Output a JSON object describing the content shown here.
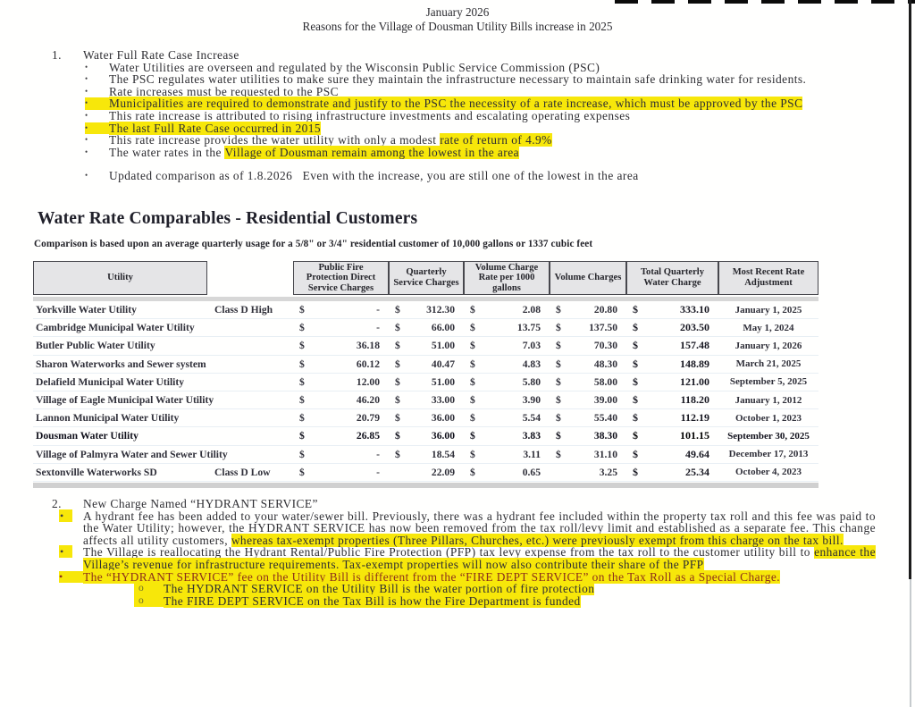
{
  "header": {
    "line1": "January 2026",
    "line2": "Reasons for the Village of Dousman Utility Bills increase in 2025"
  },
  "section1": {
    "number": "1.",
    "heading": "Water Full Rate Case Increase",
    "bullets": [
      {
        "marker": "dot",
        "marker_hl": "none",
        "segments": [
          {
            "t": "Water Utilities are overseen and regulated by the Wisconsin Public Service Commission (PSC)",
            "hl": false
          }
        ]
      },
      {
        "marker": "dot",
        "marker_hl": "none",
        "segments": [
          {
            "t": "The PSC regulates water utilities to make sure they maintain the infrastructure necessary to maintain safe drinking water for residents.",
            "hl": false
          }
        ]
      },
      {
        "marker": "dot",
        "marker_hl": "none",
        "segments": [
          {
            "t": "Rate increases must be requested to the PSC",
            "hl": false
          }
        ]
      },
      {
        "marker": "dot",
        "marker_hl": "full",
        "segments": [
          {
            "t": "Municipalities are required to demonstrate and justify to the PSC the necessity of a rate increase, which must be approved by the PSC",
            "hl": true
          }
        ]
      },
      {
        "marker": "dot",
        "marker_hl": "none",
        "segments": [
          {
            "t": "This rate increase is attributed to rising infrastructure investments and escalating operating expenses",
            "hl": false
          }
        ]
      },
      {
        "marker": "dot",
        "marker_hl": "full",
        "segments": [
          {
            "t": "The last Full Rate Case occurred in 2015",
            "hl": true
          }
        ]
      },
      {
        "marker": "dot",
        "marker_hl": "none",
        "segments": [
          {
            "t": "This rate increase provides the water utility with only a modest ",
            "hl": false
          },
          {
            "t": "rate of return of 4.9%",
            "hl": true
          }
        ]
      },
      {
        "marker": "dot",
        "marker_hl": "none",
        "segments": [
          {
            "t": "The water rates in the ",
            "hl": false
          },
          {
            "t": "Village of Dousman remain among the lowest in the area",
            "hl": true
          }
        ]
      },
      {
        "marker": "dot",
        "marker_hl": "none",
        "gap_before": true,
        "segments": [
          {
            "t": "Updated comparison as of 1.8.2026   Even with the increase, you are still one of the lowest in the area",
            "hl": false
          }
        ]
      }
    ]
  },
  "table": {
    "title": "Water Rate Comparables - Residential Customers",
    "subtitle": "Comparison is based upon an average quarterly usage for a 5/8\" or 3/4\" residential customer of 10,000 gallons or 1337 cubic feet",
    "columns": {
      "utility": "Utility",
      "pfp": "Public Fire Protection Direct Service Charges",
      "qsc": "Quarterly Service Charges",
      "rate": "Volume Charge Rate per 1000 gallons",
      "vol": "Volume Charges",
      "total": "Total Quarterly Water Charge",
      "date": "Most Recent Rate Adjustment"
    },
    "rows": [
      {
        "name": "Yorkville Water Utility",
        "klass": "Class D High",
        "pfp": [
          "$",
          "-"
        ],
        "qsc": [
          "$",
          "312.30"
        ],
        "rate": [
          "$",
          "2.08"
        ],
        "vol": [
          "$",
          "20.80"
        ],
        "total": [
          "$",
          "333.10"
        ],
        "date": "January 1, 2025",
        "emph": false
      },
      {
        "name": "Cambridge Municipal Water Utility",
        "klass": "",
        "pfp": [
          "$",
          "-"
        ],
        "qsc": [
          "$",
          "66.00"
        ],
        "rate": [
          "$",
          "13.75"
        ],
        "vol": [
          "$",
          "137.50"
        ],
        "total": [
          "$",
          "203.50"
        ],
        "date": "May 1, 2024",
        "emph": false
      },
      {
        "name": "Butler Public Water Utility",
        "klass": "",
        "pfp": [
          "$",
          "36.18"
        ],
        "qsc": [
          "$",
          "51.00"
        ],
        "rate": [
          "$",
          "7.03"
        ],
        "vol": [
          "$",
          "70.30"
        ],
        "total": [
          "$",
          "157.48"
        ],
        "date": "January 1, 2026",
        "emph": false
      },
      {
        "name": "Sharon Waterworks and Sewer system",
        "klass": "",
        "pfp": [
          "$",
          "60.12"
        ],
        "qsc": [
          "$",
          "40.47"
        ],
        "rate": [
          "$",
          "4.83"
        ],
        "vol": [
          "$",
          "48.30"
        ],
        "total": [
          "$",
          "148.89"
        ],
        "date": "March 21, 2025",
        "emph": false
      },
      {
        "name": "Delafield Municipal Water Utility",
        "klass": "",
        "pfp": [
          "$",
          "12.00"
        ],
        "qsc": [
          "$",
          "51.00"
        ],
        "rate": [
          "$",
          "5.80"
        ],
        "vol": [
          "$",
          "58.00"
        ],
        "total": [
          "$",
          "121.00"
        ],
        "date": "September 5, 2025",
        "emph": false
      },
      {
        "name": "Village of Eagle Municipal Water Utility",
        "klass": "",
        "pfp": [
          "$",
          "46.20"
        ],
        "qsc": [
          "$",
          "33.00"
        ],
        "rate": [
          "$",
          "3.90"
        ],
        "vol": [
          "$",
          "39.00"
        ],
        "total": [
          "$",
          "118.20"
        ],
        "date": "January 1, 2012",
        "emph": false
      },
      {
        "name": "Lannon Municipal Water Utility",
        "klass": "",
        "pfp": [
          "$",
          "20.79"
        ],
        "qsc": [
          "$",
          "36.00"
        ],
        "rate": [
          "$",
          "5.54"
        ],
        "vol": [
          "$",
          "55.40"
        ],
        "total": [
          "$",
          "112.19"
        ],
        "date": "October 1, 2023",
        "emph": false
      },
      {
        "name": "Dousman Water Utility",
        "klass": "",
        "pfp": [
          "$",
          "26.85"
        ],
        "qsc": [
          "$",
          "36.00"
        ],
        "rate": [
          "$",
          "3.83"
        ],
        "vol": [
          "$",
          "38.30"
        ],
        "total": [
          "$",
          "101.15"
        ],
        "date": "September 30, 2025",
        "emph": true
      },
      {
        "name": "Village of Palmyra Water and Sewer Utility",
        "klass": "",
        "pfp": [
          "$",
          "-"
        ],
        "qsc": [
          "$",
          "18.54"
        ],
        "rate": [
          "$",
          "3.11"
        ],
        "vol": [
          "$",
          "31.10"
        ],
        "total": [
          "$",
          "49.64"
        ],
        "date": "December 17, 2013",
        "emph": false
      },
      {
        "name": "Sextonville Waterworks SD",
        "klass": "Class D Low",
        "pfp": [
          "$",
          "-"
        ],
        "qsc": [
          "",
          "22.09"
        ],
        "rate": [
          "$",
          "0.65"
        ],
        "vol": [
          "",
          "3.25"
        ],
        "total": [
          "$",
          "25.34"
        ],
        "date": "October 4, 2023",
        "emph": false
      }
    ]
  },
  "section2": {
    "number": "2.",
    "heading": "New Charge Named “HYDRANT SERVICE”",
    "bullets": [
      {
        "marker": "dot",
        "level": 1,
        "marker_hl": "box",
        "segments": [
          {
            "t": "A hydrant fee has been added to your water/sewer bill. Previously, there was a hydrant fee included within the property tax roll and this fee was paid to the Water Utility; however, the HYDRANT SERVICE has now been removed from the tax roll/levy limit and established as a separate fee. This change affects all utility customers, ",
            "hl": false
          },
          {
            "t": "whereas tax-exempt properties (Three Pillars, Churches, etc.) were previously exempt from this charge on the tax bill.",
            "hl": true
          }
        ]
      },
      {
        "marker": "dot",
        "level": 1,
        "marker_hl": "box",
        "segments": [
          {
            "t": "The Village is reallocating the Hydrant Rental/Public Fire Protection (PFP) tax levy expense from the tax roll to the customer utility bill to ",
            "hl": false
          },
          {
            "t": "enhance the Village’s revenue for infrastructure requirements. Tax-exempt properties will now also contribute their share of the PFP",
            "hl": true
          }
        ]
      },
      {
        "marker": "dot",
        "level": 1,
        "marker_hl": "full",
        "red": true,
        "segments": [
          {
            "t": "The “HYDRANT SERVICE” fee on the Utility Bill is different from the “FIRE DEPT SERVICE” on the Tax Roll as a Special Charge.",
            "hl": true,
            "red": true
          }
        ]
      },
      {
        "marker": "circle",
        "level": 2,
        "marker_hl": "full",
        "segments": [
          {
            "t": "The HYDRANT SERVICE on the Utility Bill is the water portion of fire protection",
            "hl": true
          }
        ]
      },
      {
        "marker": "circle",
        "level": 2,
        "marker_hl": "full",
        "segments": [
          {
            "t": "The FIRE DEPT SERVICE on the Tax Bill is how the Fire Department is funded",
            "hl": true
          }
        ]
      }
    ]
  },
  "colors": {
    "highlight": "#f7e70a",
    "red_text": "#8c2e1b",
    "table_header_bg": "#e5e5e7"
  }
}
